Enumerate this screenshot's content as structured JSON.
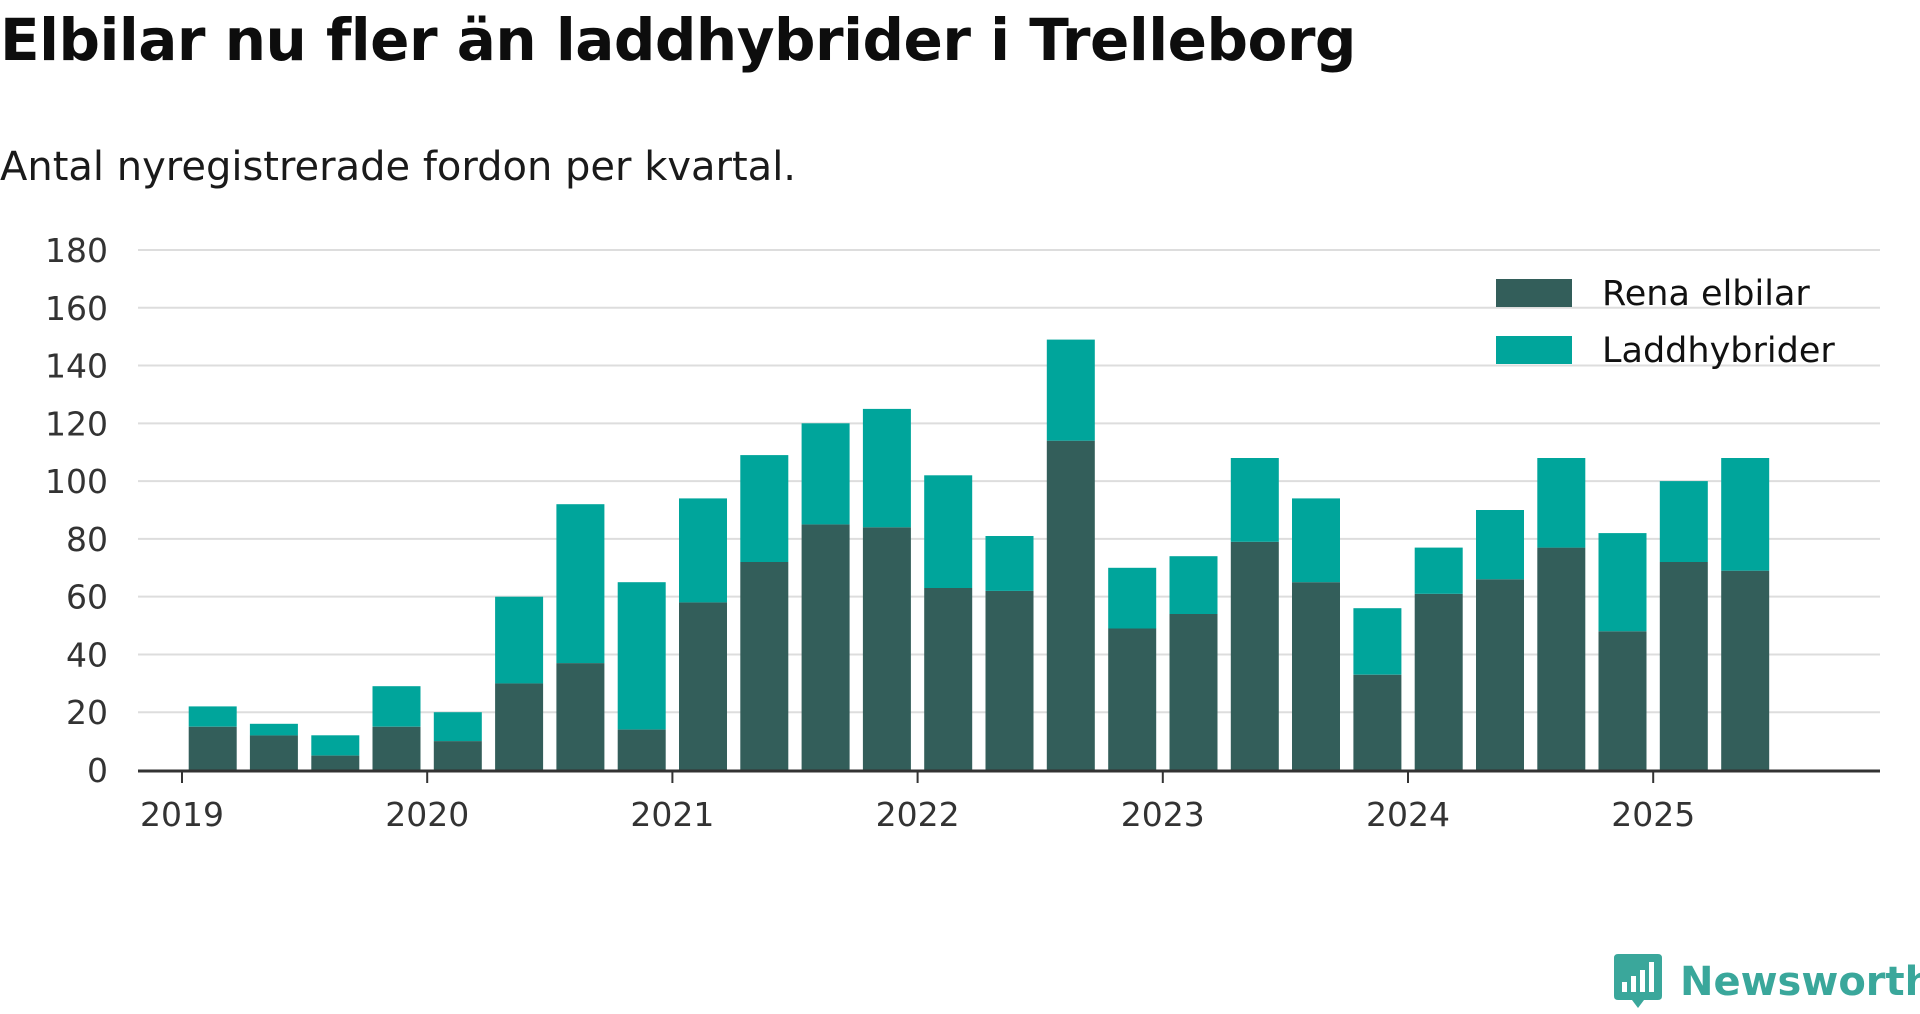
{
  "chart_data": {
    "type": "bar",
    "stacked": true,
    "title": "Elbilar nu fler än laddhybrider i Trelleborg",
    "subtitle": "Antal nyregistrerade fordon per kvartal.",
    "xlabel": "",
    "ylabel": "",
    "ylim": [
      0,
      180
    ],
    "yticks": [
      0,
      20,
      40,
      60,
      80,
      100,
      120,
      140,
      160,
      180
    ],
    "year_ticks": [
      "2019",
      "2020",
      "2021",
      "2022",
      "2023",
      "2024",
      "2025"
    ],
    "categories": [
      "2019 Q2",
      "2019 Q3",
      "2019 Q4",
      "2020 Q1",
      "2020 Q2",
      "2020 Q3",
      "2020 Q4",
      "2021 Q1",
      "2021 Q2",
      "2021 Q3",
      "2021 Q4",
      "2022 Q1",
      "2022 Q2",
      "2022 Q3",
      "2022 Q4",
      "2023 Q1",
      "2023 Q2",
      "2023 Q3",
      "2023 Q4",
      "2024 Q1",
      "2024 Q2",
      "2024 Q3",
      "2024 Q4",
      "2025 Q1",
      "2025 Q2",
      "2025 Q3"
    ],
    "series": [
      {
        "name": "Rena elbilar",
        "color": "#335e5a",
        "values": [
          15,
          12,
          5,
          15,
          10,
          30,
          37,
          14,
          58,
          72,
          85,
          84,
          63,
          62,
          114,
          49,
          54,
          79,
          65,
          33,
          61,
          66,
          77,
          48,
          72,
          69
        ]
      },
      {
        "name": "Laddhybrider",
        "color": "#00a59b",
        "values": [
          7,
          4,
          7,
          14,
          10,
          30,
          55,
          51,
          36,
          37,
          35,
          41,
          39,
          19,
          35,
          21,
          20,
          29,
          29,
          23,
          16,
          24,
          31,
          34,
          28,
          39
        ]
      }
    ],
    "grid": true,
    "legend_position": "top-right"
  },
  "colors": {
    "gridline": "#dddddd",
    "axis": "#333333",
    "tick_text": "#333333",
    "brand": "#3aa79b"
  },
  "branding": {
    "name": "Newsworthy",
    "logo_icon": "bar-chart-speech-bubble-icon"
  }
}
